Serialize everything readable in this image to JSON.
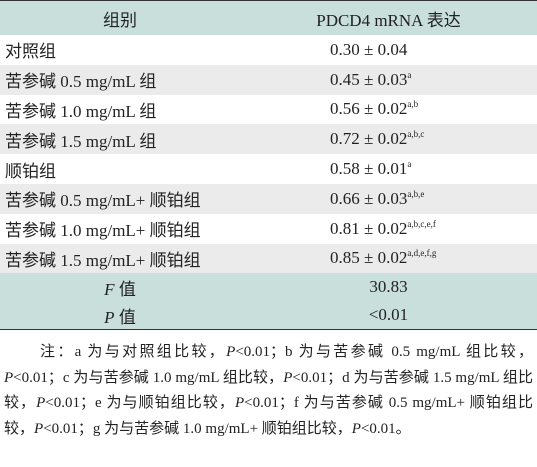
{
  "table": {
    "header": [
      "组别",
      "PDCD4 mRNA 表达"
    ],
    "rows": [
      [
        "对照组",
        "0.30 ± 0.04",
        null
      ],
      [
        "苦参碱 0.5 mg/mL 组",
        "0.45 ± 0.03",
        "a"
      ],
      [
        "苦参碱 1.0 mg/mL 组",
        "0.56 ± 0.02",
        "a,b"
      ],
      [
        "苦参碱 1.5 mg/mL 组",
        "0.72 ± 0.02",
        "a,b,c"
      ],
      [
        "顺铂组",
        "0.58 ± 0.01",
        "a"
      ],
      [
        "苦参碱 0.5 mg/mL+ 顺铂组",
        "0.66 ± 0.03",
        "a,b,e"
      ],
      [
        "苦参碱 1.0 mg/mL+ 顺铂组",
        "0.81 ± 0.02",
        "a,b,c,e,f"
      ],
      [
        "苦参碱 1.5 mg/mL+ 顺铂组",
        "0.85 ± 0.02",
        "a,d,e,f,g"
      ]
    ],
    "stats": [
      [
        "F",
        " 值",
        "30.83"
      ],
      [
        "P",
        " 值",
        "<0.01"
      ]
    ]
  },
  "note": [
    "注：a 为与对照组比较，",
    "P",
    "<0.01；b 为与苦参碱 0.5 mg/mL 组比较，",
    "P",
    "<0.01；c 为与苦参碱 1.0 mg/mL 组比较，",
    "P",
    "<0.01；d 为与苦参碱 1.5 mg/mL 组比较，",
    "P",
    "<0.01；e 为与顺铂组比较，",
    "P",
    "<0.01；f 为与苦参碱 0.5 mg/mL+ 顺铂组比较，",
    "P",
    "<0.01；g 为与苦参碱 1.0 mg/mL+ 顺铂组比较，",
    "P",
    "<0.01。"
  ]
}
